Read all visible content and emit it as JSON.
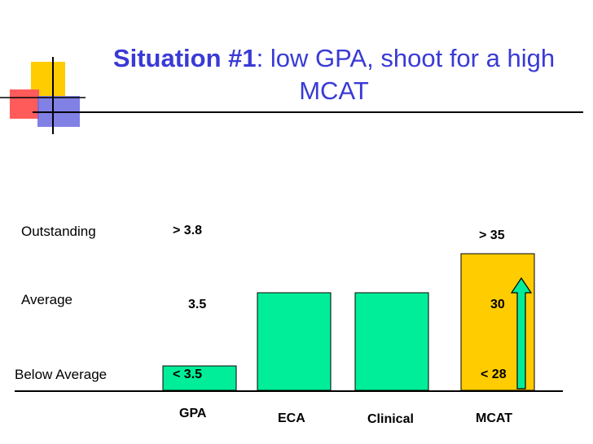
{
  "title": {
    "bold": "Situation #1",
    "rest": ": low GPA, shoot for a high MCAT"
  },
  "colors": {
    "title": "#3a3ad6",
    "green": "#00ee99",
    "yellow": "#ffcc00",
    "arrow": "#00ee99"
  },
  "chart_data": {
    "type": "bar",
    "title": "Situation #1: low GPA, shoot for a high MCAT",
    "categories": [
      "GPA",
      "ECA",
      "Clinical",
      "MCAT"
    ],
    "values": [
      0.25,
      1,
      1,
      1.4
    ],
    "bar_colors": [
      "#00ee99",
      "#00ee99",
      "#00ee99",
      "#ffcc00"
    ],
    "y_levels": [
      "Below Average",
      "Average",
      "Outstanding"
    ],
    "ylim": [
      0,
      2
    ],
    "annotations": {
      "gpa": [
        "< 3.5",
        "3.5",
        "> 3.8"
      ],
      "mcat": [
        "< 28",
        "30",
        "> 35"
      ]
    },
    "arrow": "MCAT rising from < 28 toward > 35"
  }
}
